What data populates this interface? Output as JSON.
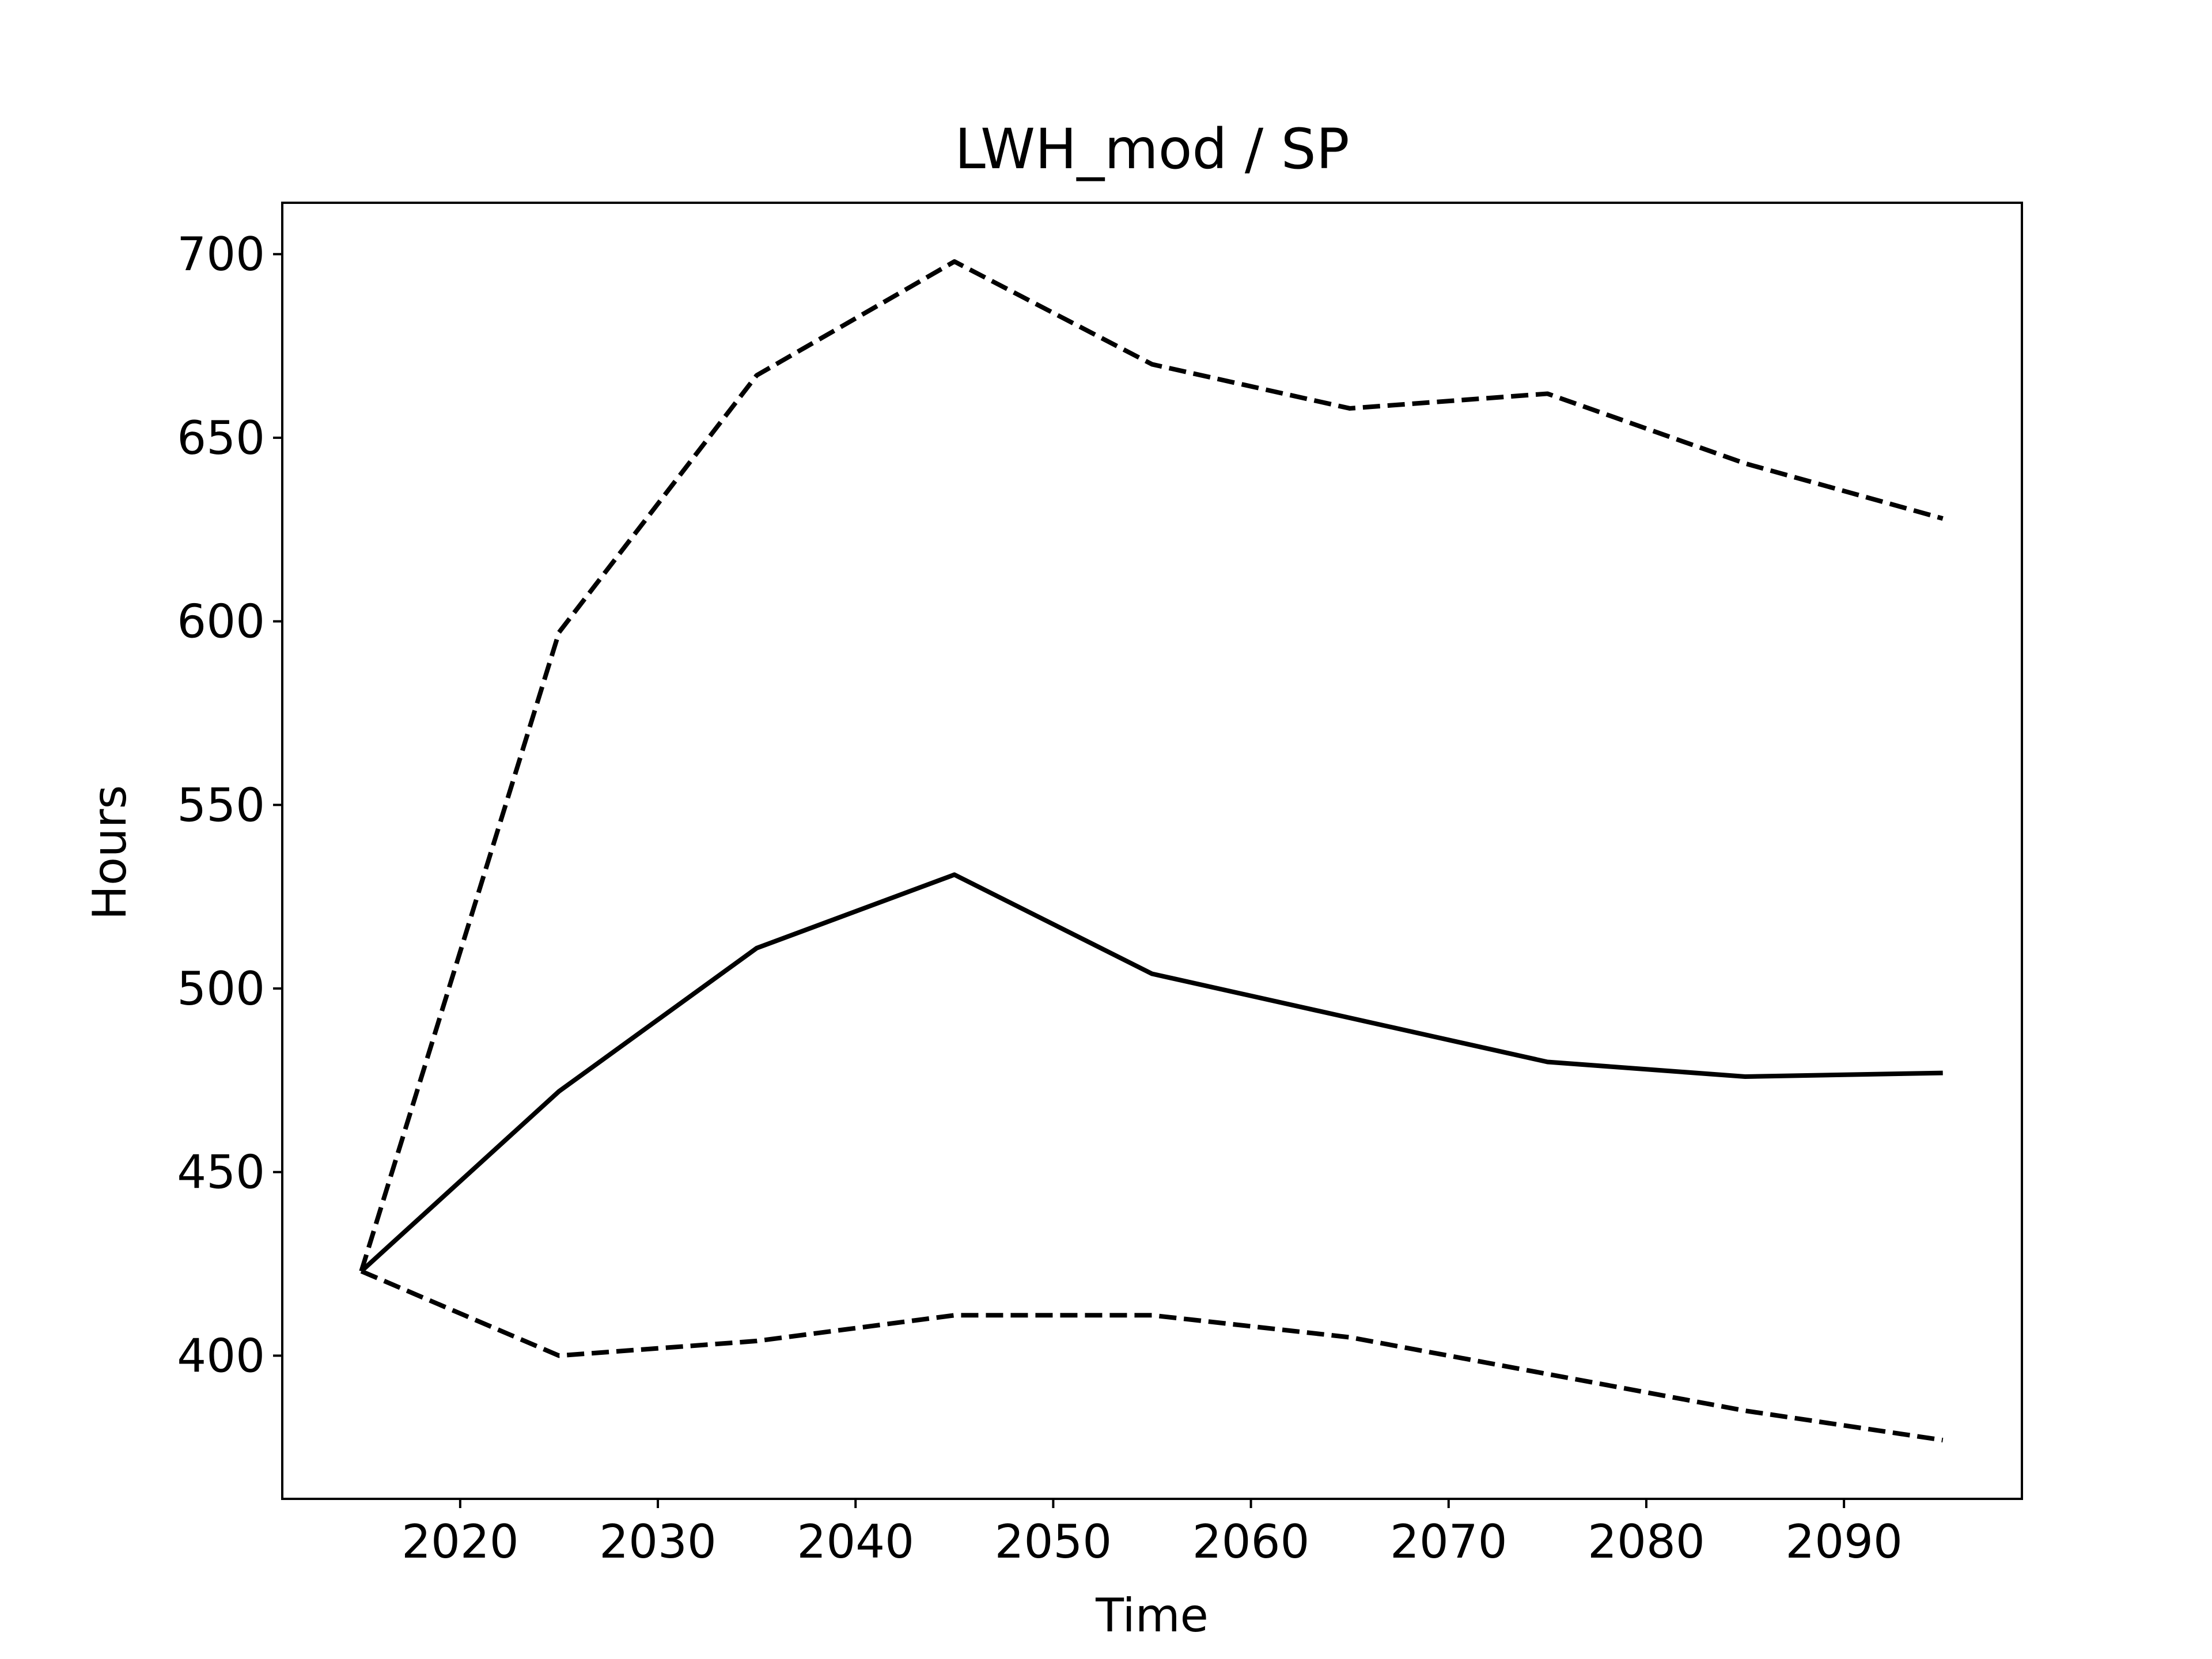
{
  "chart_data": {
    "type": "line",
    "title": "LWH_mod / SP",
    "xlabel": "Time",
    "ylabel": "Hours",
    "x": [
      2015,
      2025,
      2035,
      2045,
      2055,
      2065,
      2075,
      2085,
      2095
    ],
    "series": [
      {
        "style": "solid",
        "values": [
          423,
          472,
          511,
          531,
          504,
          492,
          480,
          476,
          477
        ]
      },
      {
        "style": "dashed",
        "values": [
          423,
          597,
          667,
          698,
          670,
          658,
          662,
          643,
          628
        ]
      },
      {
        "style": "dashed",
        "values": [
          423,
          400,
          404,
          411,
          411,
          405,
          395,
          385,
          377
        ]
      }
    ],
    "xlim": [
      2011,
      2099
    ],
    "ylim": [
      361,
      714
    ],
    "xticks": [
      2020,
      2030,
      2040,
      2050,
      2060,
      2070,
      2080,
      2090
    ],
    "yticks": [
      400,
      450,
      500,
      550,
      600,
      650,
      700
    ],
    "grid": false,
    "legend": "none",
    "colors": {
      "line": "#000000",
      "axes": "#000000",
      "background": "#ffffff"
    }
  }
}
